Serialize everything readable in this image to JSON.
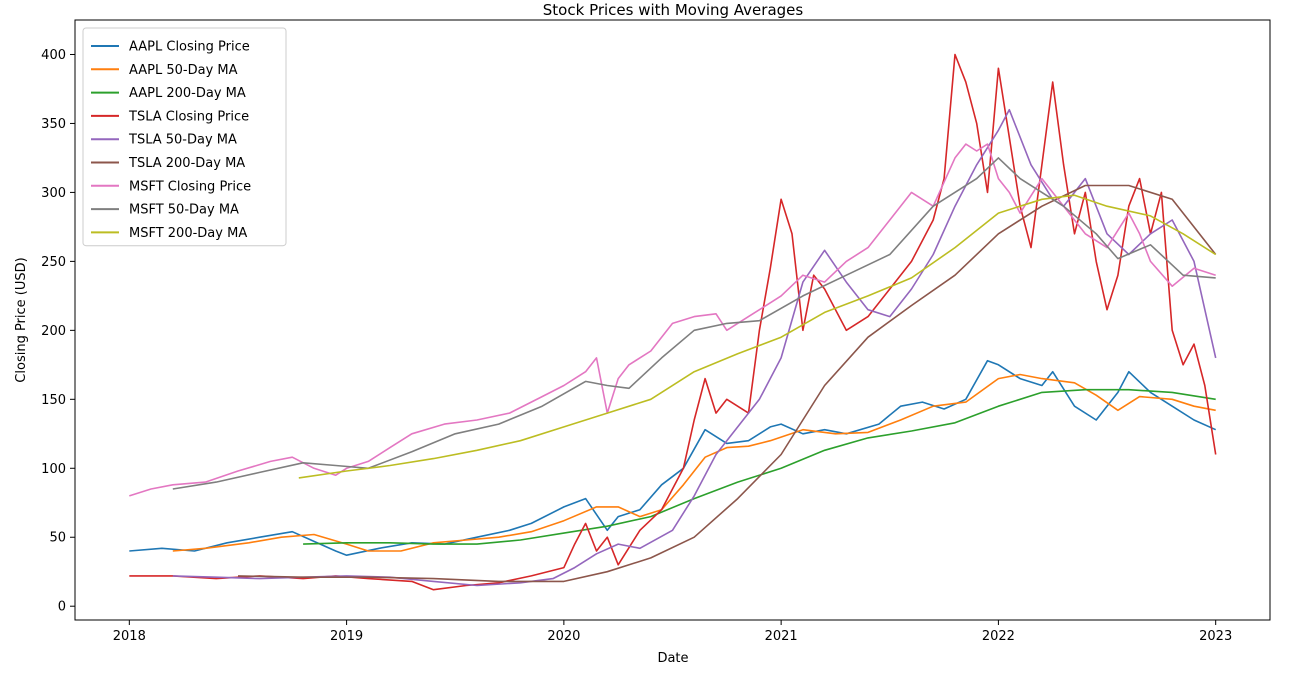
{
  "chart_data": {
    "type": "line",
    "title": "Stock Prices with Moving Averages",
    "xlabel": "Date",
    "ylabel": "Closing Price (USD)",
    "xlim": [
      2017.75,
      2023.25
    ],
    "ylim": [
      -10,
      425
    ],
    "x_ticks": [
      2018,
      2019,
      2020,
      2021,
      2022,
      2023
    ],
    "x_tick_labels": [
      "2018",
      "2019",
      "2020",
      "2021",
      "2022",
      "2023"
    ],
    "y_ticks": [
      0,
      50,
      100,
      150,
      200,
      250,
      300,
      350,
      400
    ],
    "y_tick_labels": [
      "0",
      "50",
      "100",
      "150",
      "200",
      "250",
      "300",
      "350",
      "400"
    ],
    "grid": false,
    "legend_position": "top-left",
    "series": [
      {
        "name": "AAPL Closing Price",
        "color": "#1f77b4",
        "x": [
          2018.0,
          2018.15,
          2018.3,
          2018.45,
          2018.6,
          2018.75,
          2018.85,
          2018.95,
          2019.0,
          2019.15,
          2019.3,
          2019.45,
          2019.6,
          2019.75,
          2019.85,
          2020.0,
          2020.1,
          2020.2,
          2020.25,
          2020.35,
          2020.45,
          2020.55,
          2020.65,
          2020.75,
          2020.85,
          2020.95,
          2021.0,
          2021.1,
          2021.2,
          2021.3,
          2021.45,
          2021.55,
          2021.65,
          2021.75,
          2021.85,
          2021.95,
          2022.0,
          2022.1,
          2022.2,
          2022.25,
          2022.35,
          2022.45,
          2022.55,
          2022.6,
          2022.7,
          2022.8,
          2022.9,
          2023.0
        ],
        "values": [
          40,
          42,
          40,
          46,
          50,
          54,
          47,
          40,
          37,
          42,
          46,
          45,
          50,
          55,
          60,
          72,
          78,
          55,
          65,
          70,
          88,
          100,
          128,
          118,
          120,
          130,
          132,
          125,
          128,
          125,
          132,
          145,
          148,
          143,
          150,
          178,
          175,
          165,
          160,
          170,
          145,
          135,
          155,
          170,
          155,
          145,
          135,
          128
        ]
      },
      {
        "name": "AAPL 50-Day MA",
        "color": "#ff7f0e",
        "x": [
          2018.2,
          2018.35,
          2018.55,
          2018.7,
          2018.85,
          2019.0,
          2019.1,
          2019.25,
          2019.4,
          2019.55,
          2019.7,
          2019.85,
          2020.0,
          2020.15,
          2020.25,
          2020.35,
          2020.45,
          2020.55,
          2020.65,
          2020.75,
          2020.85,
          2020.95,
          2021.1,
          2021.25,
          2021.4,
          2021.55,
          2021.7,
          2021.85,
          2022.0,
          2022.1,
          2022.2,
          2022.35,
          2022.45,
          2022.55,
          2022.65,
          2022.8,
          2022.9,
          2023.0
        ],
        "values": [
          40,
          42,
          46,
          50,
          52,
          45,
          40,
          40,
          46,
          48,
          50,
          54,
          62,
          72,
          72,
          65,
          70,
          88,
          108,
          115,
          116,
          120,
          128,
          125,
          126,
          135,
          145,
          148,
          165,
          168,
          165,
          162,
          153,
          142,
          152,
          150,
          145,
          142
        ]
      },
      {
        "name": "AAPL 200-Day MA",
        "color": "#2ca02c",
        "x": [
          2018.8,
          2019.0,
          2019.2,
          2019.4,
          2019.6,
          2019.8,
          2020.0,
          2020.2,
          2020.4,
          2020.6,
          2020.8,
          2021.0,
          2021.2,
          2021.4,
          2021.6,
          2021.8,
          2022.0,
          2022.2,
          2022.4,
          2022.6,
          2022.8,
          2023.0
        ],
        "values": [
          45,
          46,
          46,
          45,
          45,
          48,
          53,
          58,
          65,
          78,
          90,
          100,
          113,
          122,
          127,
          133,
          145,
          155,
          157,
          157,
          155,
          150
        ]
      },
      {
        "name": "TSLA Closing Price",
        "color": "#d62728",
        "x": [
          2018.0,
          2018.2,
          2018.4,
          2018.6,
          2018.8,
          2018.95,
          2019.1,
          2019.3,
          2019.4,
          2019.55,
          2019.7,
          2019.85,
          2020.0,
          2020.05,
          2020.1,
          2020.15,
          2020.2,
          2020.25,
          2020.35,
          2020.45,
          2020.55,
          2020.6,
          2020.65,
          2020.7,
          2020.75,
          2020.85,
          2020.9,
          2020.95,
          2021.0,
          2021.05,
          2021.1,
          2021.15,
          2021.2,
          2021.3,
          2021.4,
          2021.5,
          2021.6,
          2021.7,
          2021.75,
          2021.8,
          2021.85,
          2021.9,
          2021.95,
          2022.0,
          2022.05,
          2022.1,
          2022.15,
          2022.2,
          2022.25,
          2022.3,
          2022.35,
          2022.4,
          2022.45,
          2022.5,
          2022.55,
          2022.6,
          2022.65,
          2022.7,
          2022.75,
          2022.8,
          2022.85,
          2022.9,
          2022.95,
          2023.0
        ],
        "values": [
          22,
          22,
          20,
          22,
          20,
          22,
          20,
          18,
          12,
          15,
          17,
          22,
          28,
          45,
          60,
          40,
          50,
          30,
          55,
          70,
          100,
          135,
          165,
          140,
          150,
          140,
          200,
          245,
          295,
          270,
          200,
          240,
          230,
          200,
          210,
          230,
          250,
          280,
          310,
          400,
          380,
          350,
          300,
          390,
          340,
          290,
          260,
          320,
          380,
          320,
          270,
          300,
          250,
          215,
          240,
          290,
          310,
          270,
          300,
          200,
          175,
          190,
          160,
          110
        ]
      },
      {
        "name": "TSLA 50-Day MA",
        "color": "#9467bd",
        "x": [
          2018.2,
          2018.4,
          2018.6,
          2018.8,
          2019.0,
          2019.2,
          2019.4,
          2019.6,
          2019.8,
          2019.95,
          2020.05,
          2020.15,
          2020.25,
          2020.35,
          2020.5,
          2020.6,
          2020.7,
          2020.8,
          2020.9,
          2021.0,
          2021.1,
          2021.2,
          2021.3,
          2021.4,
          2021.5,
          2021.6,
          2021.7,
          2021.8,
          2021.9,
          2022.0,
          2022.05,
          2022.15,
          2022.25,
          2022.3,
          2022.4,
          2022.5,
          2022.6,
          2022.7,
          2022.8,
          2022.9,
          2023.0
        ],
        "values": [
          22,
          21,
          20,
          21,
          22,
          21,
          18,
          15,
          17,
          20,
          28,
          38,
          45,
          42,
          55,
          80,
          110,
          130,
          150,
          180,
          235,
          258,
          235,
          215,
          210,
          230,
          255,
          290,
          320,
          345,
          360,
          320,
          295,
          290,
          310,
          270,
          255,
          270,
          280,
          250,
          180
        ]
      },
      {
        "name": "TSLA 200-Day MA",
        "color": "#8c564b",
        "x": [
          2018.5,
          2018.8,
          2019.1,
          2019.4,
          2019.7,
          2020.0,
          2020.2,
          2020.4,
          2020.6,
          2020.8,
          2021.0,
          2021.2,
          2021.4,
          2021.6,
          2021.8,
          2022.0,
          2022.2,
          2022.4,
          2022.6,
          2022.8,
          2023.0
        ],
        "values": [
          22,
          21,
          21,
          20,
          18,
          18,
          25,
          35,
          50,
          78,
          110,
          160,
          195,
          218,
          240,
          270,
          290,
          305,
          305,
          295,
          255
        ]
      },
      {
        "name": "MSFT Closing Price",
        "color": "#e377c2",
        "x": [
          2018.0,
          2018.1,
          2018.2,
          2018.35,
          2018.5,
          2018.65,
          2018.75,
          2018.85,
          2018.95,
          2019.0,
          2019.1,
          2019.2,
          2019.3,
          2019.45,
          2019.6,
          2019.75,
          2019.9,
          2020.0,
          2020.1,
          2020.15,
          2020.2,
          2020.25,
          2020.3,
          2020.4,
          2020.5,
          2020.6,
          2020.7,
          2020.75,
          2020.85,
          2020.95,
          2021.0,
          2021.1,
          2021.2,
          2021.3,
          2021.4,
          2021.5,
          2021.6,
          2021.7,
          2021.8,
          2021.85,
          2021.9,
          2021.95,
          2022.0,
          2022.05,
          2022.1,
          2022.2,
          2022.3,
          2022.4,
          2022.5,
          2022.6,
          2022.65,
          2022.7,
          2022.8,
          2022.9,
          2023.0
        ],
        "values": [
          80,
          85,
          88,
          90,
          98,
          105,
          108,
          100,
          95,
          100,
          105,
          115,
          125,
          132,
          135,
          140,
          152,
          160,
          170,
          180,
          140,
          165,
          175,
          185,
          205,
          210,
          212,
          200,
          210,
          220,
          225,
          240,
          235,
          250,
          260,
          280,
          300,
          290,
          325,
          335,
          330,
          335,
          310,
          300,
          285,
          310,
          290,
          270,
          260,
          285,
          270,
          250,
          232,
          245,
          240
        ]
      },
      {
        "name": "MSFT 50-Day MA",
        "color": "#7f7f7f",
        "x": [
          2018.2,
          2018.4,
          2018.6,
          2018.8,
          2018.95,
          2019.1,
          2019.3,
          2019.5,
          2019.7,
          2019.9,
          2020.1,
          2020.2,
          2020.3,
          2020.45,
          2020.6,
          2020.75,
          2020.9,
          2021.1,
          2021.3,
          2021.5,
          2021.7,
          2021.9,
          2022.0,
          2022.1,
          2022.2,
          2022.3,
          2022.45,
          2022.55,
          2022.7,
          2022.85,
          2023.0
        ],
        "values": [
          85,
          90,
          97,
          104,
          102,
          100,
          112,
          125,
          132,
          145,
          163,
          160,
          158,
          180,
          200,
          205,
          207,
          225,
          240,
          255,
          290,
          310,
          325,
          310,
          300,
          290,
          270,
          252,
          262,
          240,
          238
        ]
      },
      {
        "name": "MSFT 200-Day MA",
        "color": "#bcbd22",
        "x": [
          2018.78,
          2019.0,
          2019.2,
          2019.4,
          2019.6,
          2019.8,
          2020.0,
          2020.2,
          2020.4,
          2020.6,
          2020.8,
          2021.0,
          2021.2,
          2021.4,
          2021.6,
          2021.8,
          2022.0,
          2022.2,
          2022.35,
          2022.5,
          2022.7,
          2022.85,
          2023.0
        ],
        "values": [
          93,
          98,
          102,
          107,
          113,
          120,
          130,
          140,
          150,
          170,
          183,
          195,
          213,
          225,
          238,
          260,
          285,
          295,
          298,
          290,
          283,
          270,
          255
        ]
      }
    ]
  }
}
